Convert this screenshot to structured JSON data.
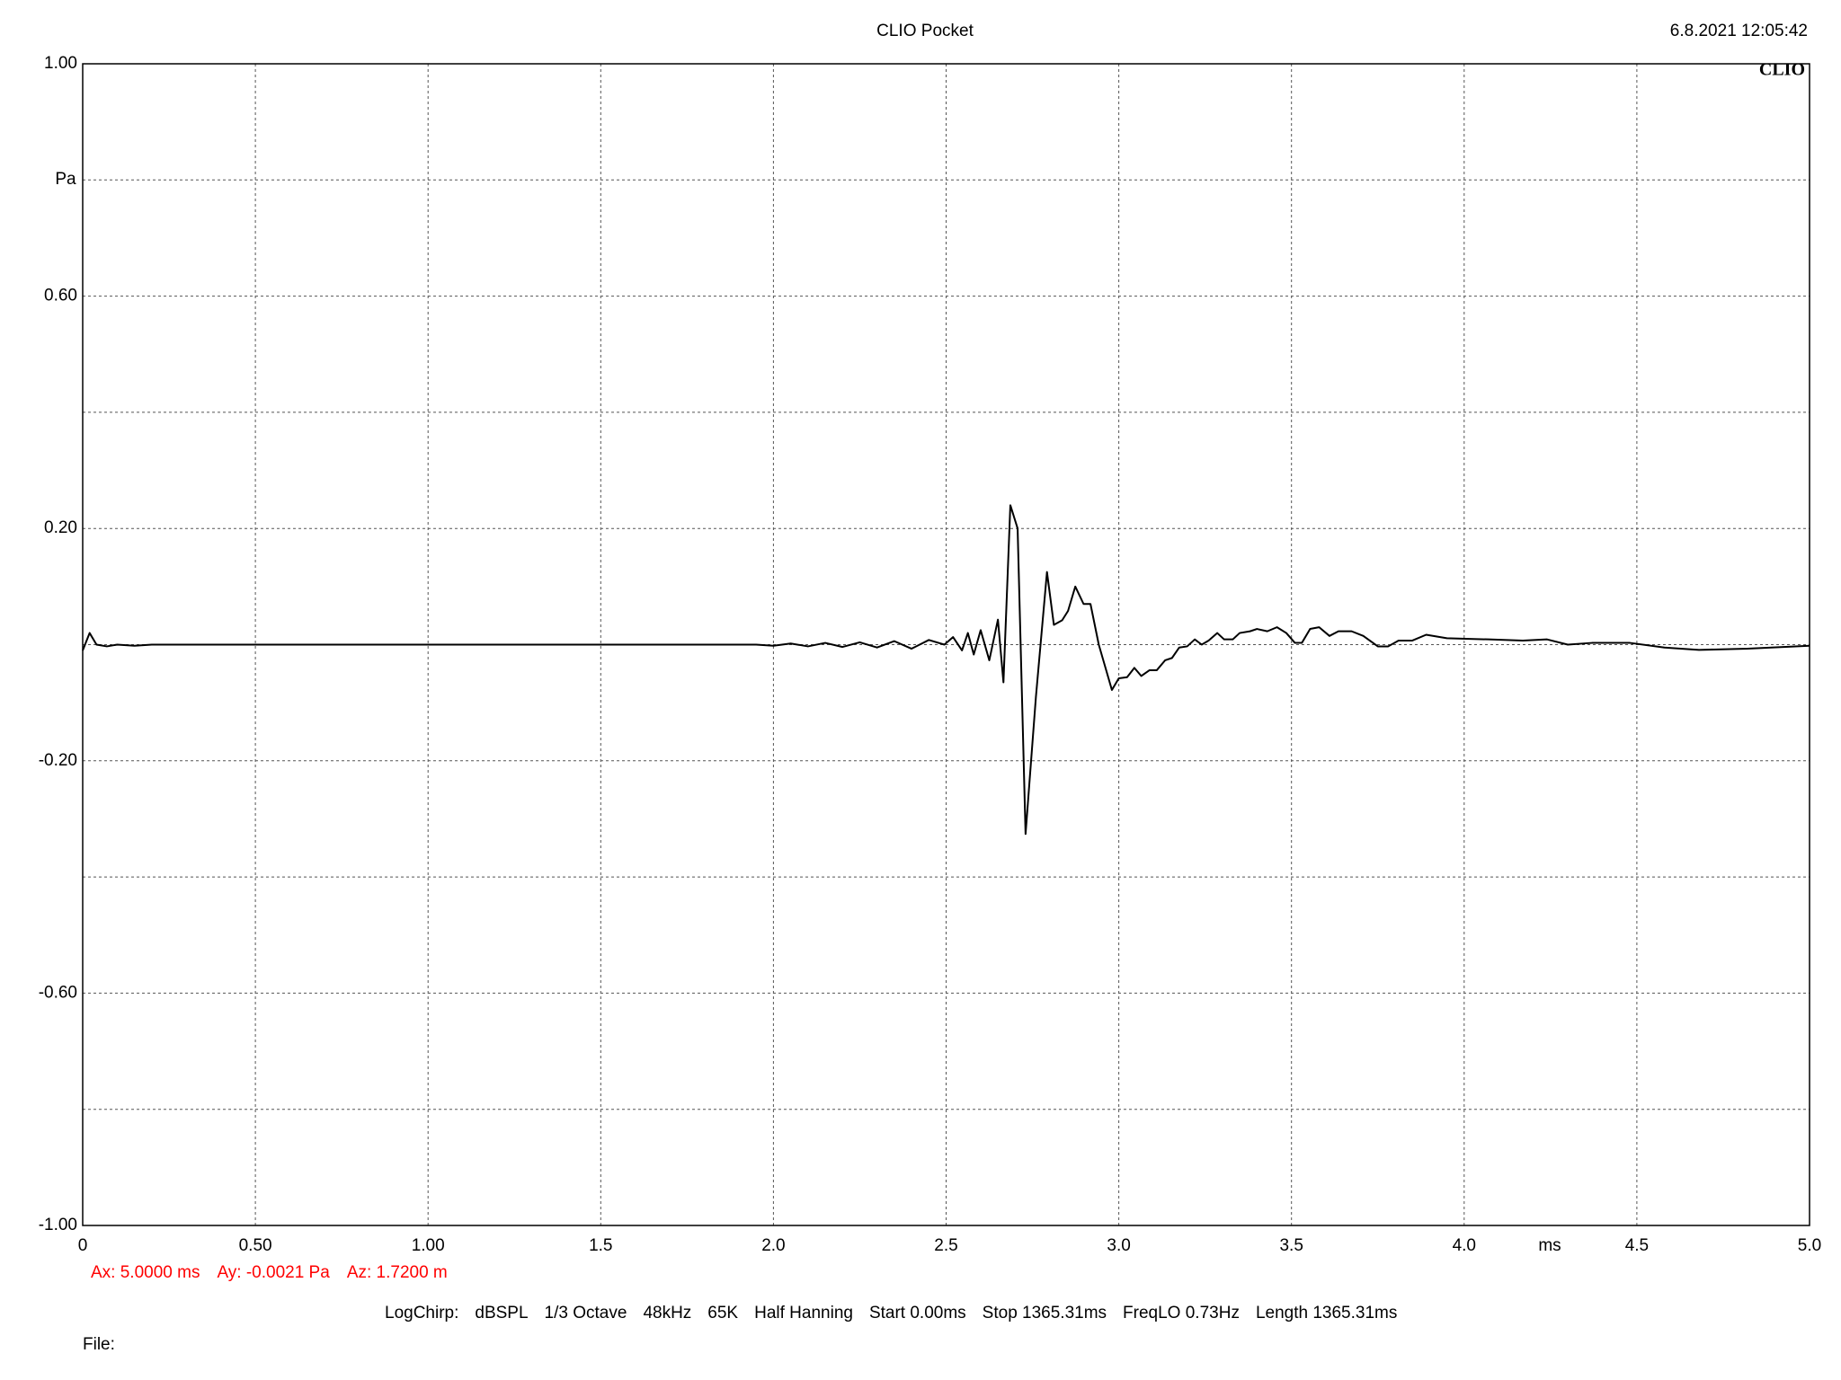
{
  "chart_data": {
    "type": "line",
    "title": "CLIO Pocket",
    "timestamp": "6.8.2021 12:05:42",
    "logo": "CLIO",
    "y_unit": "Pa",
    "x_unit": "ms",
    "xlim": [
      0,
      5
    ],
    "ylim": [
      -1,
      1
    ],
    "xticks": [
      0,
      {
        "value": 0.5,
        "label": "0.50"
      },
      {
        "value": 1,
        "label": "1.00"
      },
      1.5,
      {
        "value": 2,
        "label": "2.0"
      },
      2.5,
      {
        "value": 3,
        "label": "3.0"
      },
      3.5,
      {
        "value": 4,
        "label": "4.0"
      },
      4.5,
      {
        "value": 5,
        "label": "5.0"
      }
    ],
    "yticks": [
      {
        "value": 1,
        "label": "1.00"
      },
      {
        "value": 0.8,
        "label": null
      },
      {
        "value": 0.6,
        "label": "0.60"
      },
      {
        "value": 0.4,
        "label": null
      },
      {
        "value": 0.2,
        "label": "0.20"
      },
      {
        "value": 0,
        "label": null
      },
      {
        "value": -0.2,
        "label": "-0.20"
      },
      {
        "value": -0.4,
        "label": null
      },
      {
        "value": -0.6,
        "label": "-0.60"
      },
      {
        "value": -0.8,
        "label": null
      },
      {
        "value": -1,
        "label": "-1.00"
      }
    ],
    "grid": true,
    "series": [
      {
        "color": "#000000",
        "x": [
          0,
          0.02,
          0.04,
          0.07,
          0.1,
          0.15,
          0.2,
          0.3,
          1.0,
          1.95,
          2.0,
          2.05,
          2.1,
          2.15,
          2.2,
          2.25,
          2.3,
          2.35,
          2.4,
          2.45,
          2.495,
          2.52,
          2.546,
          2.563,
          2.58,
          2.6,
          2.625,
          2.65,
          2.666,
          2.686,
          2.707,
          2.73,
          2.76,
          2.792,
          2.812,
          2.836,
          2.853,
          2.874,
          2.898,
          2.918,
          2.942,
          2.98,
          3.0,
          3.024,
          3.045,
          3.065,
          3.089,
          3.11,
          3.134,
          3.154,
          3.175,
          3.198,
          3.22,
          3.24,
          3.26,
          3.285,
          3.305,
          3.33,
          3.35,
          3.38,
          3.4,
          3.43,
          3.458,
          3.485,
          3.51,
          3.53,
          3.554,
          3.58,
          3.61,
          3.636,
          3.674,
          3.708,
          3.75,
          3.78,
          3.81,
          3.85,
          3.89,
          3.95,
          4.07,
          4.17,
          4.24,
          4.3,
          4.37,
          4.48,
          4.58,
          4.68,
          4.82,
          5.0
        ],
        "values": [
          -0.01,
          0.02,
          0,
          -0.003,
          0,
          -0.002,
          0,
          0,
          0,
          0,
          -0.002,
          0.002,
          -0.003,
          0.003,
          -0.004,
          0.004,
          -0.005,
          0.006,
          -0.007,
          0.008,
          0,
          0.013,
          -0.01,
          0.02,
          -0.017,
          0.025,
          -0.027,
          0.043,
          -0.065,
          0.24,
          0.2,
          -0.326,
          -0.09,
          0.125,
          0.034,
          0.042,
          0.058,
          0.1,
          0.07,
          0.07,
          0,
          -0.078,
          -0.058,
          -0.056,
          -0.04,
          -0.054,
          -0.044,
          -0.044,
          -0.027,
          -0.023,
          -0.005,
          -0.003,
          0.009,
          0,
          0.007,
          0.02,
          0.009,
          0.009,
          0.02,
          0.023,
          0.027,
          0.023,
          0.03,
          0.02,
          0.003,
          0.003,
          0.027,
          0.03,
          0.015,
          0.023,
          0.023,
          0.015,
          -0.003,
          -0.003,
          0.007,
          0.007,
          0.017,
          0.011,
          0.009,
          0.007,
          0.009,
          0,
          0.003,
          0.003,
          -0.005,
          -0.009,
          -0.007,
          -0.002
        ]
      }
    ],
    "cursor": {
      "color": "#ff0000",
      "items": [
        "Ax: 5.0000 ms",
        "Ay: -0.0021 Pa",
        "Az: 1.7200 m"
      ]
    },
    "settings": [
      "LogChirp:",
      "dBSPL",
      "1/3 Octave",
      "48kHz",
      "65K",
      "Half Hanning",
      "Start 0.00ms",
      "Stop 1365.31ms",
      "FreqLO 0.73Hz",
      "Length 1365.31ms"
    ],
    "file_label": "File:"
  }
}
